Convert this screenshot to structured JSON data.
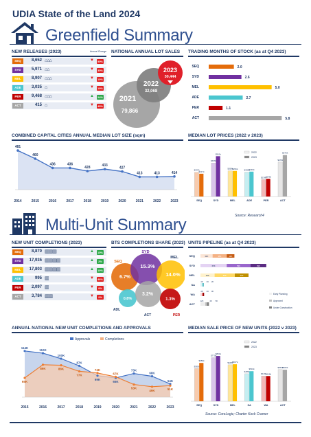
{
  "header": {
    "title": "UDIA State of the Land 2024",
    "greenfield_title": "Greenfield Summary",
    "multiunit_title": "Multi-Unit Summary"
  },
  "colors": {
    "navy": "#1f3864",
    "title_blue": "#2e4f8f",
    "SEQ": "#e46c0a",
    "SYD": "#7030a0",
    "MEL": "#ffc000",
    "ADE": "#4bc6cf",
    "PER": "#c00000",
    "ACT": "#a6a6a6",
    "up": "#2ea84a",
    "down": "#e02020"
  },
  "greenfield_releases": {
    "title": "NEW RELEASES (2023)",
    "change_header": "Annual Change",
    "rows": [
      {
        "region": "SEQ",
        "value": "8,652",
        "change": "55%",
        "direction": "down",
        "icons": 3
      },
      {
        "region": "SYD",
        "value": "5,971",
        "change": "35%",
        "direction": "down",
        "icons": 2
      },
      {
        "region": "MEL",
        "value": "8,907",
        "change": "10%",
        "direction": "down",
        "icons": 3
      },
      {
        "region": "ADE",
        "value": "3,035",
        "change": "19%",
        "direction": "down",
        "icons": 1
      },
      {
        "region": "PER",
        "value": "9,468",
        "change": "24%",
        "direction": "up",
        "icons": 3
      },
      {
        "region": "ACT",
        "value": "415",
        "change": "45%",
        "direction": "down",
        "icons": 1
      }
    ]
  },
  "lot_sales": {
    "title": "NATIONAL ANNUAL LOT SALES",
    "bubbles": [
      {
        "year": "2021",
        "value": "79,866",
        "color": "#a6a6a6"
      },
      {
        "year": "2022",
        "value": "32,068",
        "color": "#7f7f7f"
      },
      {
        "year": "2023",
        "value": "30,444",
        "color": "#e0202a"
      }
    ]
  },
  "trading_months": {
    "title": "TRADING MONTHS OF STOCK (as at Q4 2023)"
  },
  "lot_size": {
    "title": "COMBINED CAPITAL CITIES ANNUAL MEDIAN LOT SIZE (sqm)"
  },
  "lot_prices": {
    "title": "MEDIAN LOT PRICES (2022 v 2023)",
    "source": "Source: Research4",
    "legend": [
      "2022",
      "2023"
    ]
  },
  "completions": {
    "title": "NEW UNIT COMPLETIONS (2023)",
    "rows": [
      {
        "region": "SEQ",
        "value": "8,870",
        "change": "15%",
        "direction": "up",
        "icons": 3
      },
      {
        "region": "SYD",
        "value": "17,935",
        "change": "2%",
        "direction": "up",
        "icons": 4
      },
      {
        "region": "MEL",
        "value": "17,803",
        "change": "10%",
        "direction": "up",
        "icons": 4
      },
      {
        "region": "ADE",
        "value": "995",
        "change": "46%",
        "direction": "down",
        "icons": 1
      },
      {
        "region": "PER",
        "value": "2,097",
        "change": "9%",
        "direction": "down",
        "icons": 1
      },
      {
        "region": "ACT",
        "value": "3,784",
        "change": "2%",
        "direction": "down",
        "icons": 2
      }
    ]
  },
  "bts_share": {
    "title": "BTS COMPLETIONS SHARE (2023)",
    "circles": [
      {
        "region": "SEQ",
        "value": "6.7%",
        "color": "#e46c0a"
      },
      {
        "region": "SYD",
        "value": "15.3%",
        "color": "#7030a0"
      },
      {
        "region": "MEL",
        "value": "14.0%",
        "color": "#ffc000"
      },
      {
        "region": "ADL",
        "value": "0.8%",
        "color": "#4bc6cf"
      },
      {
        "region": "ACT",
        "value": "3.2%",
        "color": "#a6a6a6"
      },
      {
        "region": "PER",
        "value": "1.3%",
        "color": "#c00000"
      }
    ]
  },
  "pipeline": {
    "title": "UNITS PIPELINE (as at Q4 2023)",
    "legend": [
      "Early Planning",
      "Approved",
      "Under Construction"
    ]
  },
  "annual_completions": {
    "title": "ANNUAL NATIONAL NEW UNIT COMPLETIONS AND APPROVALS"
  },
  "unit_sale_price": {
    "title": "MEDIAN SALE PRICE OF NEW UNITS (2022 v 2023)",
    "source": "Source: CoreLogic; Charter Keck Cramer",
    "legend": [
      "2022",
      "2023"
    ]
  },
  "chart_data": [
    {
      "id": "trading_months",
      "type": "bar",
      "orientation": "horizontal",
      "title": "TRADING MONTHS OF STOCK (as at Q4 2023)",
      "categories": [
        "SEQ",
        "SYD",
        "MEL",
        "ADE",
        "PER",
        "ACT"
      ],
      "values": [
        2.0,
        2.6,
        5.0,
        2.7,
        1.1,
        5.8
      ],
      "value_labels": [
        "2.0",
        "2.6",
        "5.0",
        "2.7",
        "1.1",
        "5.8"
      ],
      "colors": [
        "#e46c0a",
        "#7030a0",
        "#ffc000",
        "#4bc6cf",
        "#c00000",
        "#a6a6a6"
      ],
      "xlim": [
        0,
        6
      ]
    },
    {
      "id": "lot_size",
      "type": "area",
      "title": "COMBINED CAPITAL CITIES ANNUAL MEDIAN LOT SIZE (sqm)",
      "x": [
        "2014",
        "2015",
        "2016",
        "2017",
        "2018",
        "2019",
        "2020",
        "2021",
        "2022",
        "2023"
      ],
      "values": [
        481,
        460,
        436,
        436,
        428,
        433,
        427,
        413,
        413,
        414
      ],
      "ylim": [
        380,
        490
      ]
    },
    {
      "id": "lot_prices",
      "type": "bar",
      "title": "MEDIAN LOT PRICES (2022 v 2023)",
      "categories": [
        "SEQ",
        "SYD",
        "MEL",
        "ADE",
        "PER",
        "ACT"
      ],
      "series": [
        {
          "name": "2022",
          "values": [
            337,
            466,
            358,
            339,
            236,
            479
          ],
          "labels": [
            "$337k",
            "$466k",
            "$358k",
            "$339k",
            "$236k",
            "$479k"
          ]
        },
        {
          "name": "2023",
          "values": [
            317,
            561,
            356,
            346,
            246,
            576
          ],
          "labels": [
            "$317k",
            "$561k",
            "$356k",
            "$346k",
            "$246k",
            "$576k"
          ]
        }
      ],
      "ylim": [
        0,
        650
      ]
    },
    {
      "id": "pipeline",
      "type": "bar",
      "orientation": "horizontal",
      "stacked": true,
      "title": "UNITS PIPELINE (as at Q4 2023)",
      "categories": [
        "SEQ",
        "SYD",
        "MEL",
        "SA",
        "WA",
        "ACT"
      ],
      "series": [
        {
          "name": "Early Planning",
          "values": [
            30,
            65,
            35,
            4,
            4,
            12
          ],
          "labels": [
            "30K",
            "65K",
            "35K",
            "4K",
            "4K",
            "12K"
          ]
        },
        {
          "name": "Approved",
          "values": [
            35,
            59,
            50,
            2,
            2,
            4
          ],
          "labels": [
            "35K",
            "59K",
            "50K",
            "2K",
            "2K",
            "4K"
          ]
        },
        {
          "name": "Under Construction",
          "values": [
            19,
            39,
            34,
            2,
            3,
            5
          ],
          "labels": [
            "19K",
            "39K",
            "34K",
            "2K",
            "3K",
            "5K"
          ]
        }
      ],
      "xlim": [
        0,
        170
      ]
    },
    {
      "id": "annual_completions",
      "type": "area",
      "title": "ANNUAL NATIONAL NEW UNIT COMPLETIONS AND APPROVALS",
      "x": [
        "2015",
        "2016",
        "2017",
        "2018",
        "2019",
        "2020",
        "2021",
        "2022",
        "2023"
      ],
      "series": [
        {
          "name": "Approvals",
          "values": [
            114,
            110,
            100,
            87,
            69,
            65,
            73,
            68,
            54
          ],
          "labels": [
            "114K",
            "110K",
            "100K",
            "87K",
            "69K",
            "65K",
            "73K",
            "68K",
            "54K"
          ]
        },
        {
          "name": "Completions",
          "values": [
            65,
            89,
            88,
            77,
            74,
            67,
            53,
            49,
            51
          ],
          "labels": [
            "65K",
            "89K",
            "88K",
            "77K",
            "74K",
            "67K",
            "53K",
            "49K",
            "51K"
          ]
        }
      ],
      "ylim": [
        30,
        125
      ]
    },
    {
      "id": "unit_sale_price",
      "type": "bar",
      "title": "MEDIAN SALE PRICE OF NEW UNITS (2022 v 2023)",
      "categories": [
        "SEQ",
        "SYD",
        "MEL",
        "SA",
        "WA",
        "ACT"
      ],
      "series": [
        {
          "name": "2022",
          "values": [
            582,
            775,
            648,
            489,
            449,
            563
          ],
          "labels": [
            "$582k",
            "$775k",
            "$648k",
            "$489k",
            "$449k",
            "$563k"
          ]
        },
        {
          "name": "2023",
          "values": [
            680,
            804,
            657,
            534,
            448,
            560
          ],
          "labels": [
            "$680k",
            "$804k",
            "$657k",
            "$534k",
            "$448k",
            "$560k"
          ]
        }
      ],
      "ylim": [
        0,
        1000
      ]
    }
  ]
}
